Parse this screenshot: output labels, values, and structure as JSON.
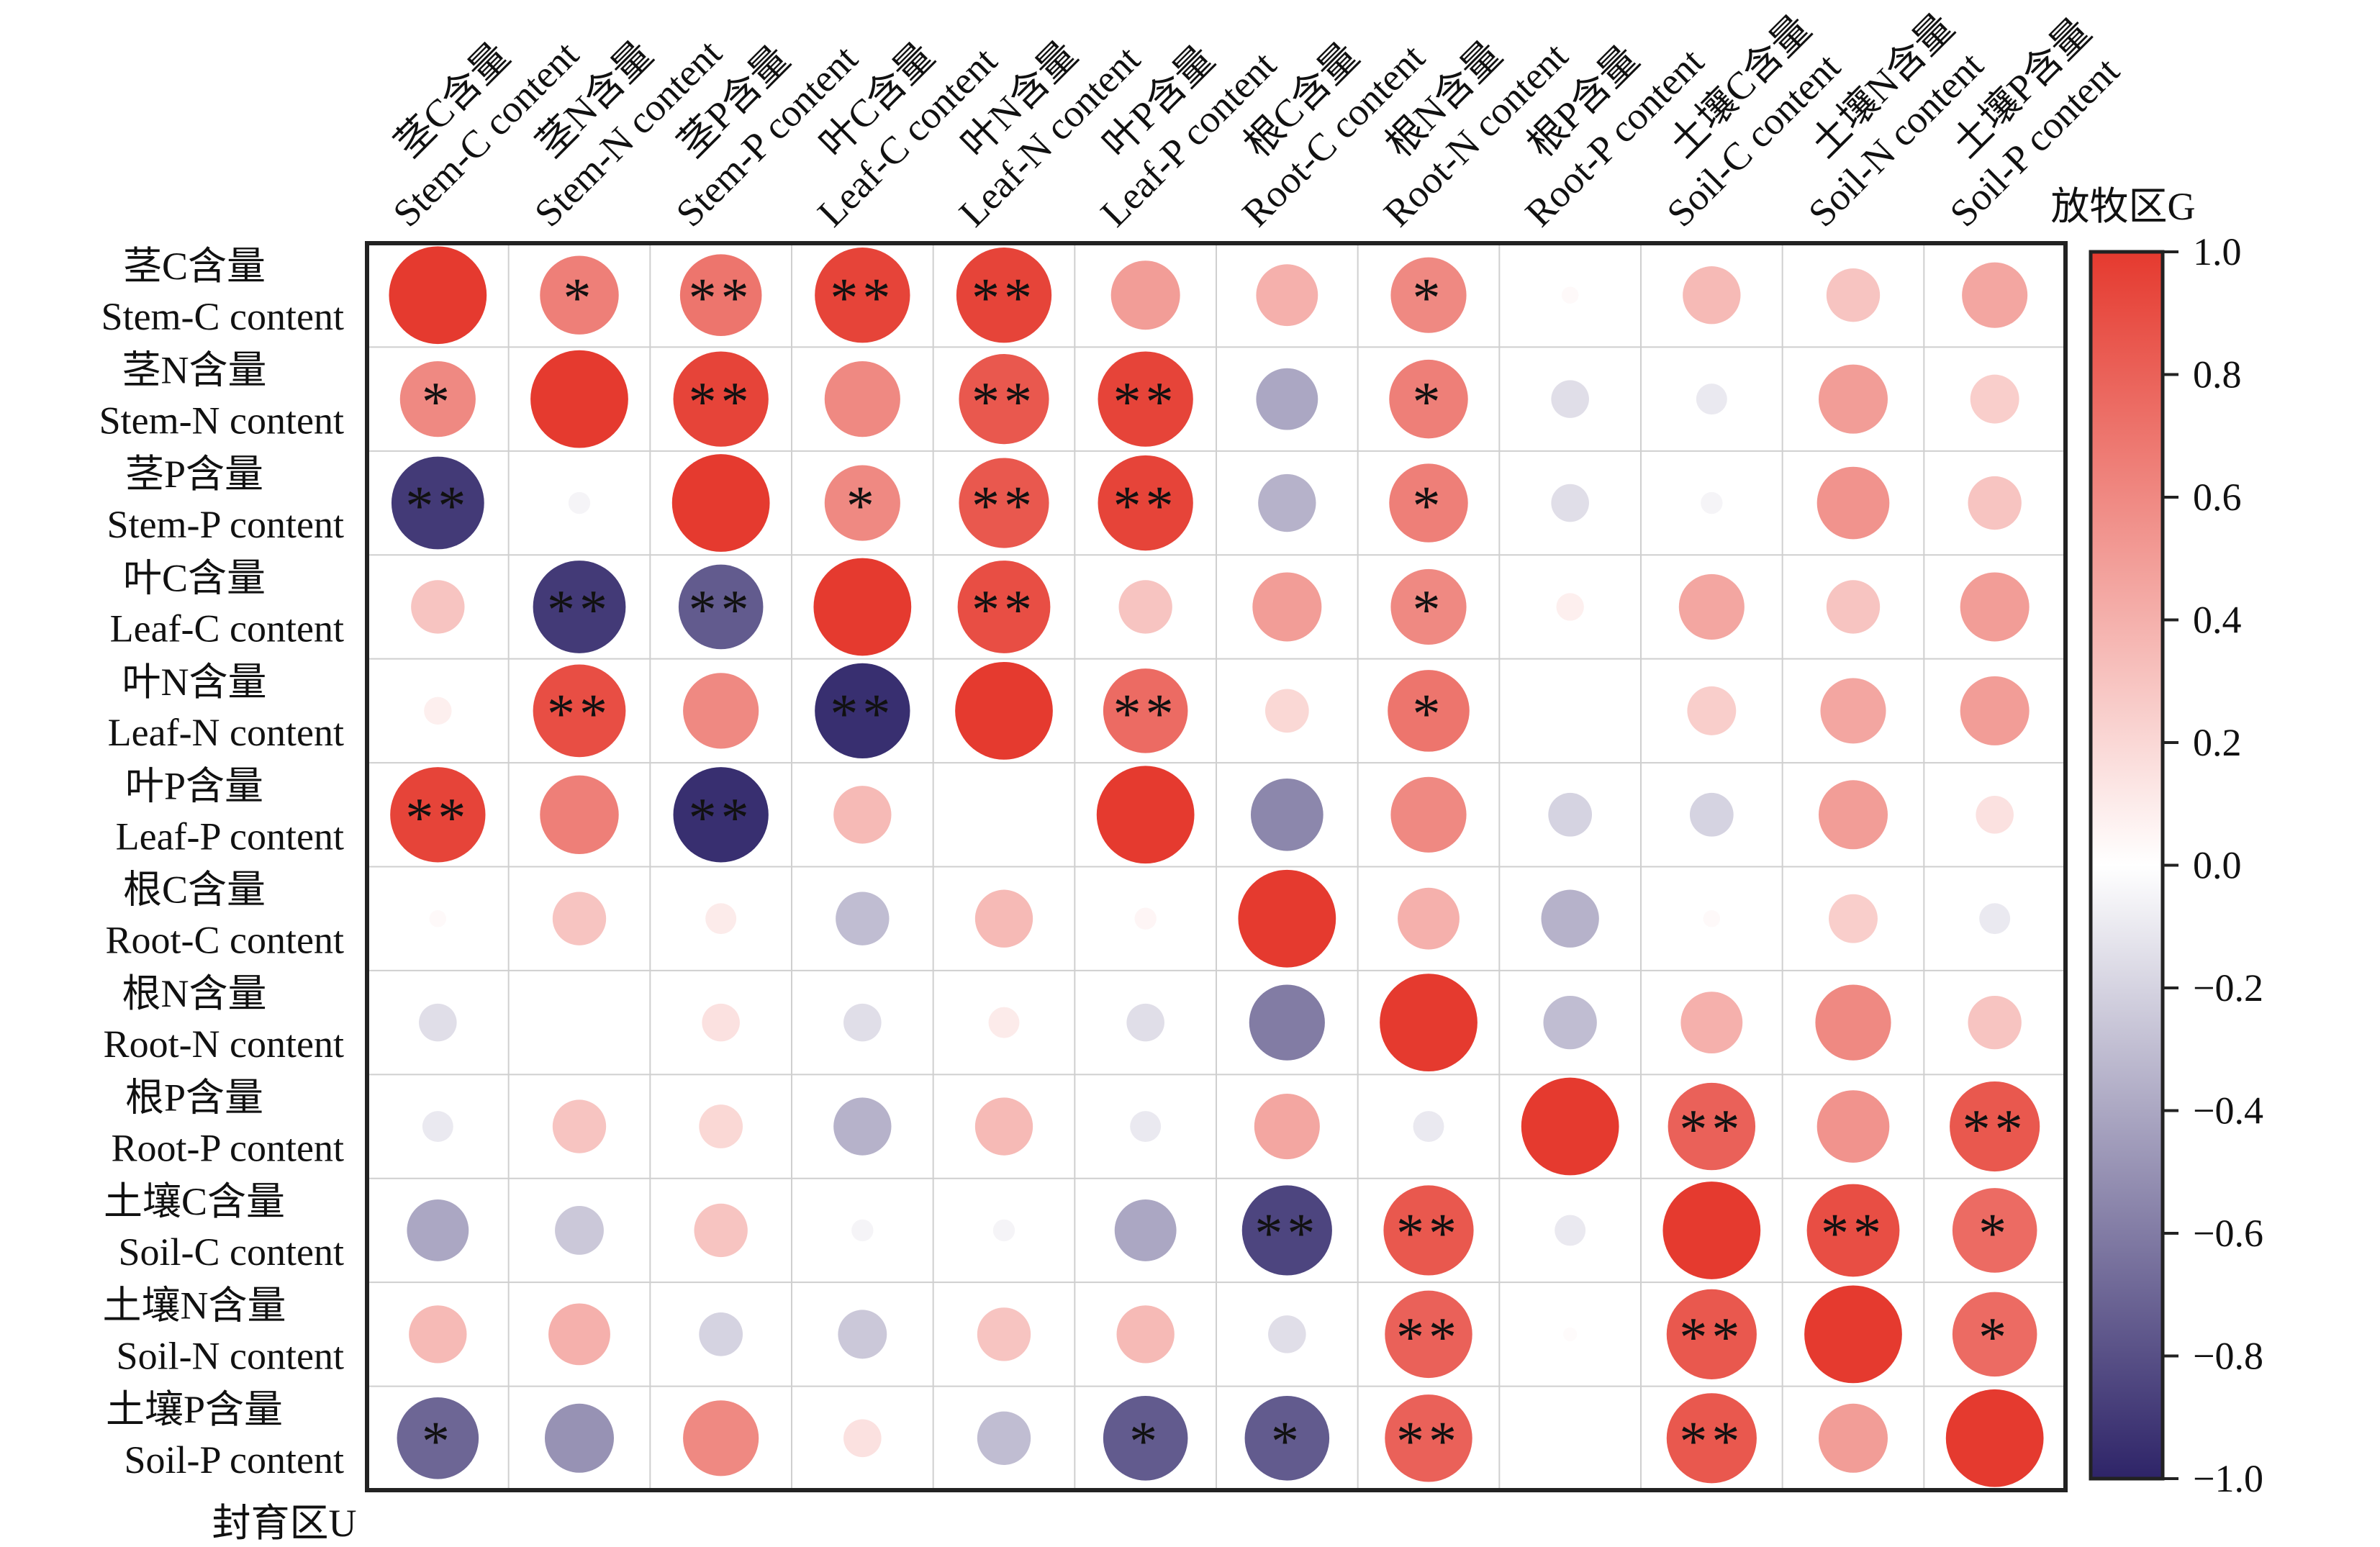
{
  "chart_data": {
    "type": "heatmap",
    "variables": [
      {
        "zh": "茎C含量",
        "en": "Stem-C content"
      },
      {
        "zh": "茎N含量",
        "en": "Stem-N content"
      },
      {
        "zh": "茎P含量",
        "en": "Stem-P content"
      },
      {
        "zh": "叶C含量",
        "en": "Leaf-C content"
      },
      {
        "zh": "叶N含量",
        "en": "Leaf-N content"
      },
      {
        "zh": "叶P含量",
        "en": "Leaf-P content"
      },
      {
        "zh": "根C含量",
        "en": "Root-C content"
      },
      {
        "zh": "根N含量",
        "en": "Root-N content"
      },
      {
        "zh": "根P含量",
        "en": "Root-P content"
      },
      {
        "zh": "土壤C含量",
        "en": "Soil-C content"
      },
      {
        "zh": "土壤N含量",
        "en": "Soil-N content"
      },
      {
        "zh": "土壤P含量",
        "en": "Soil-P content"
      }
    ],
    "values": [
      [
        1.0,
        0.65,
        0.7,
        0.95,
        0.95,
        0.5,
        0.4,
        0.6,
        0.03,
        0.35,
        0.3,
        0.45
      ],
      [
        0.6,
        1.0,
        0.95,
        0.6,
        0.85,
        0.95,
        -0.4,
        0.65,
        -0.15,
        -0.1,
        0.5,
        0.25
      ],
      [
        -0.9,
        -0.05,
        1.0,
        0.6,
        0.85,
        0.95,
        -0.35,
        0.65,
        -0.15,
        -0.05,
        0.55,
        0.3
      ],
      [
        0.3,
        -0.9,
        -0.75,
        1.0,
        0.9,
        0.3,
        0.5,
        0.6,
        0.08,
        0.45,
        0.3,
        0.5
      ],
      [
        0.08,
        0.9,
        0.6,
        -0.95,
        1.0,
        0.75,
        0.2,
        0.7,
        0.0,
        0.25,
        0.45,
        0.5
      ],
      [
        0.95,
        0.65,
        -0.95,
        0.35,
        0.0,
        1.0,
        -0.55,
        0.6,
        -0.2,
        -0.2,
        0.5,
        0.15
      ],
      [
        0.03,
        0.3,
        0.1,
        -0.3,
        0.35,
        0.05,
        1.0,
        0.4,
        -0.35,
        0.03,
        0.25,
        -0.1
      ],
      [
        -0.15,
        0.0,
        0.15,
        -0.15,
        0.1,
        -0.15,
        -0.6,
        1.0,
        -0.3,
        0.4,
        0.6,
        0.3
      ],
      [
        -0.1,
        0.3,
        0.2,
        -0.35,
        0.35,
        -0.1,
        0.45,
        -0.1,
        1.0,
        0.8,
        0.55,
        0.85
      ],
      [
        -0.4,
        -0.25,
        0.3,
        -0.05,
        -0.05,
        -0.4,
        -0.85,
        0.85,
        -0.1,
        1.0,
        0.9,
        0.75
      ],
      [
        0.35,
        0.4,
        -0.2,
        -0.25,
        0.3,
        0.35,
        -0.15,
        0.8,
        0.02,
        0.85,
        1.0,
        0.75
      ],
      [
        -0.7,
        -0.5,
        0.6,
        0.15,
        -0.3,
        -0.75,
        -0.75,
        0.8,
        0.0,
        0.85,
        0.5,
        1.0
      ]
    ],
    "significance": [
      [
        "",
        "*",
        "**",
        "**",
        "**",
        "",
        "",
        "*",
        "",
        "",
        "",
        ""
      ],
      [
        "*",
        "",
        "**",
        "",
        "**",
        "**",
        "",
        "*",
        "",
        "",
        "",
        ""
      ],
      [
        "**",
        "",
        "",
        "*",
        "**",
        "**",
        "",
        "*",
        "",
        "",
        "",
        ""
      ],
      [
        "",
        "**",
        "**",
        "",
        "**",
        "",
        "",
        "*",
        "",
        "",
        "",
        ""
      ],
      [
        "",
        "**",
        "",
        "**",
        "",
        "**",
        "",
        "*",
        "",
        "",
        "",
        ""
      ],
      [
        "**",
        "",
        "**",
        "",
        "",
        "",
        "",
        "",
        "",
        "",
        "",
        ""
      ],
      [
        "",
        "",
        "",
        "",
        "",
        "",
        "",
        "",
        "",
        "",
        "",
        ""
      ],
      [
        "",
        "",
        "",
        "",
        "",
        "",
        "",
        "",
        "",
        "",
        "",
        ""
      ],
      [
        "",
        "",
        "",
        "",
        "",
        "",
        "",
        "",
        "",
        "**",
        "",
        "**"
      ],
      [
        "",
        "",
        "",
        "",
        "",
        "",
        "**",
        "**",
        "",
        "",
        "**",
        "*"
      ],
      [
        "",
        "",
        "",
        "",
        "",
        "",
        "",
        "**",
        "",
        "**",
        "",
        "*"
      ],
      [
        "*",
        "",
        "",
        "",
        "",
        "*",
        "*",
        "**",
        "",
        "**",
        "",
        ""
      ]
    ],
    "upper_label": "放牧区G",
    "lower_label": "封育区U",
    "colorbar": {
      "range": [
        -1.0,
        1.0
      ],
      "ticks": [
        "1.0",
        "0.8",
        "0.6",
        "0.4",
        "0.2",
        "0.0",
        "−0.2",
        "−0.4",
        "−0.6",
        "−0.8",
        "−1.0"
      ],
      "colors": {
        "negative": "#2e2468",
        "zero": "#ffffff",
        "positive": "#e53a2f"
      }
    }
  }
}
